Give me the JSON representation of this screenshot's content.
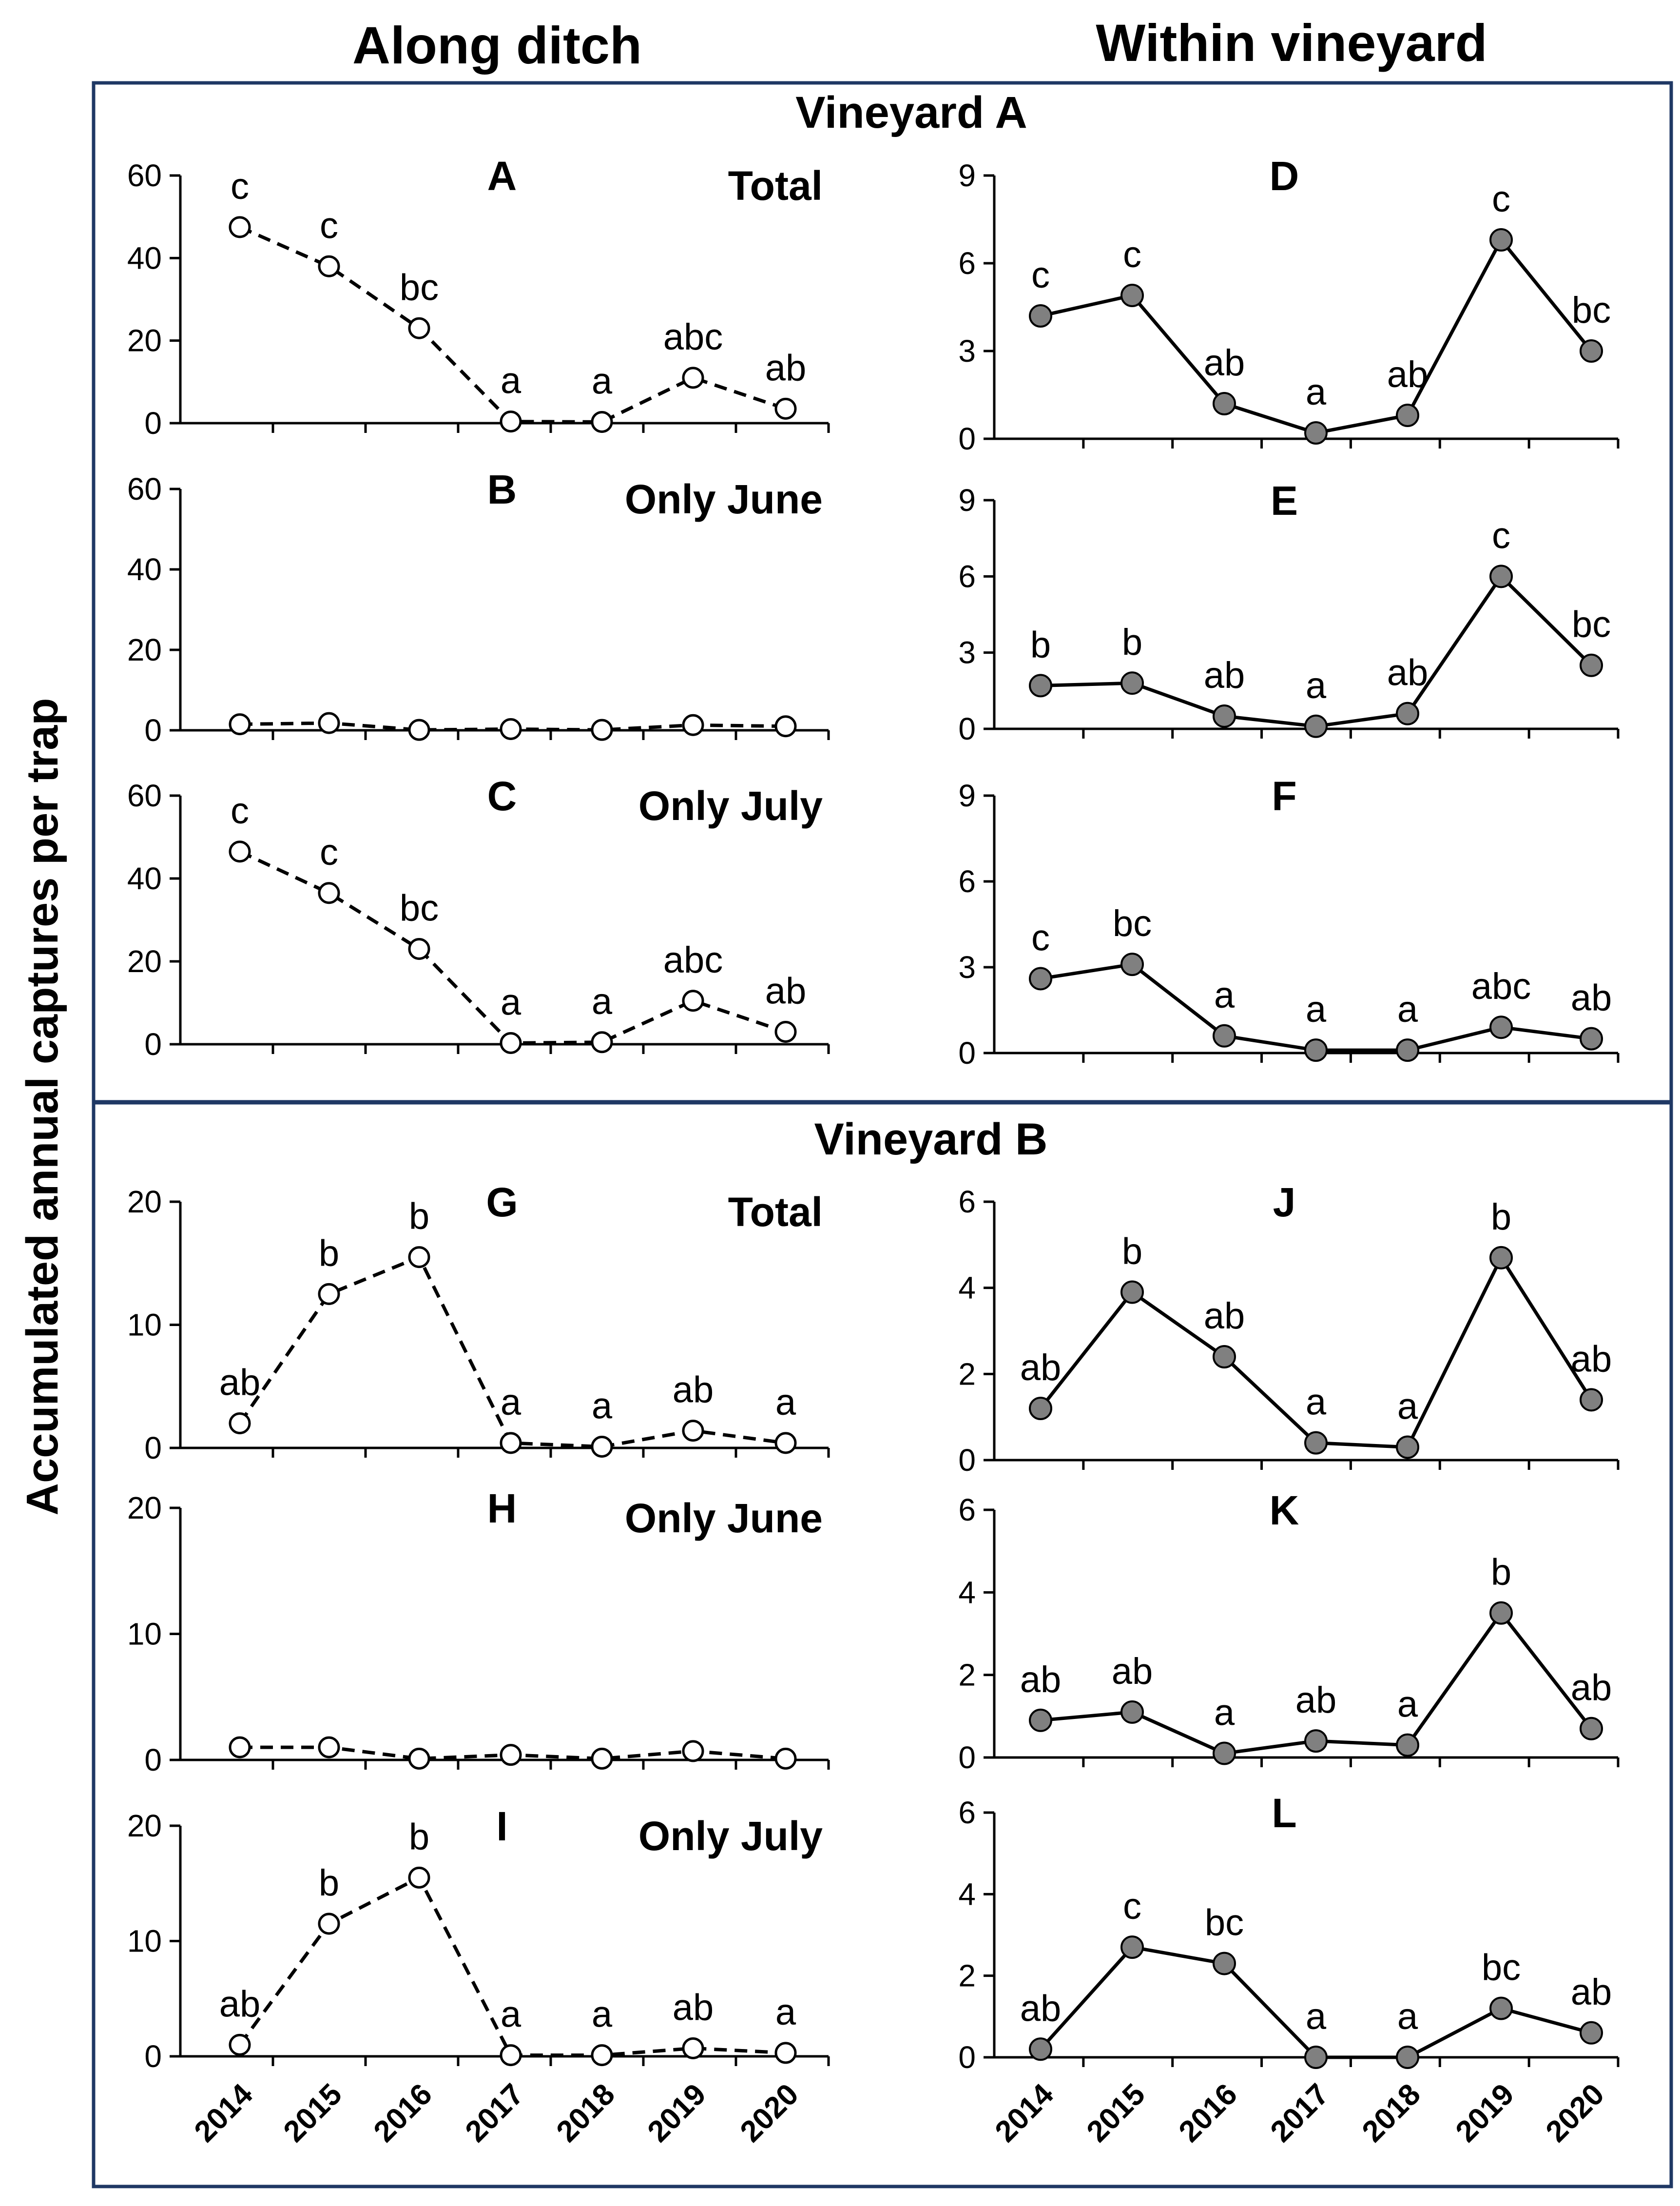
{
  "figure": {
    "col_left_title": "Along ditch",
    "col_right_title": "Within vineyard",
    "vineyard_a_title": "Vineyard A",
    "vineyard_b_title": "Vineyard B",
    "y_axis_title": "Accumulated annual captures per trap",
    "frame_color": "#1f3864",
    "line_color": "#000000",
    "filled_marker_color": "#808080",
    "hollow_marker_color": "#ffffff"
  },
  "chart_data": [
    {
      "panel": "A",
      "subtitle": "Total",
      "type": "line",
      "style": "dashed-hollow",
      "x": [
        "2014",
        "2015",
        "2016",
        "2017",
        "2018",
        "2019",
        "2020"
      ],
      "values": [
        47.5,
        38,
        23,
        0.4,
        0.3,
        11,
        3.5
      ],
      "letters": [
        "c",
        "c",
        "bc",
        "a",
        "a",
        "abc",
        "ab"
      ],
      "ylim": [
        0,
        60
      ],
      "yticks": [
        "0",
        "20",
        "40",
        "60"
      ]
    },
    {
      "panel": "B",
      "subtitle": "Only June",
      "type": "line",
      "style": "dashed-hollow",
      "x": [
        "2014",
        "2015",
        "2016",
        "2017",
        "2018",
        "2019",
        "2020"
      ],
      "values": [
        1.5,
        1.8,
        0.1,
        0.3,
        0.1,
        1.3,
        1.0
      ],
      "letters": [
        "",
        "",
        "",
        "",
        "",
        "",
        ""
      ],
      "ylim": [
        0,
        60
      ],
      "yticks": [
        "0",
        "20",
        "40",
        "60"
      ]
    },
    {
      "panel": "C",
      "subtitle": "Only July",
      "type": "line",
      "style": "dashed-hollow",
      "x": [
        "2014",
        "2015",
        "2016",
        "2017",
        "2018",
        "2019",
        "2020"
      ],
      "values": [
        46.5,
        36.5,
        23,
        0.3,
        0.5,
        10.5,
        3
      ],
      "letters": [
        "c",
        "c",
        "bc",
        "a",
        "a",
        "abc",
        "ab"
      ],
      "ylim": [
        0,
        60
      ],
      "yticks": [
        "0",
        "20",
        "40",
        "60"
      ]
    },
    {
      "panel": "D",
      "subtitle": "",
      "type": "line",
      "style": "solid-filled",
      "x": [
        "2014",
        "2015",
        "2016",
        "2017",
        "2018",
        "2019",
        "2020"
      ],
      "values": [
        4.2,
        4.9,
        1.2,
        0.2,
        0.8,
        6.8,
        3.0
      ],
      "letters": [
        "c",
        "c",
        "ab",
        "a",
        "ab",
        "c",
        "bc"
      ],
      "ylim": [
        0,
        9
      ],
      "yticks": [
        "0",
        "3",
        "6",
        "9"
      ]
    },
    {
      "panel": "E",
      "subtitle": "",
      "type": "line",
      "style": "solid-filled",
      "x": [
        "2014",
        "2015",
        "2016",
        "2017",
        "2018",
        "2019",
        "2020"
      ],
      "values": [
        1.7,
        1.8,
        0.5,
        0.1,
        0.6,
        6.0,
        2.5
      ],
      "letters": [
        "b",
        "b",
        "ab",
        "a",
        "ab",
        "c",
        "bc"
      ],
      "ylim": [
        0,
        9
      ],
      "yticks": [
        "0",
        "3",
        "6",
        "9"
      ]
    },
    {
      "panel": "F",
      "subtitle": "",
      "type": "line",
      "style": "solid-filled",
      "x": [
        "2014",
        "2015",
        "2016",
        "2017",
        "2018",
        "2019",
        "2020"
      ],
      "values": [
        2.6,
        3.1,
        0.6,
        0.1,
        0.1,
        0.9,
        0.5
      ],
      "letters": [
        "c",
        "bc",
        "a",
        "a",
        "a",
        "abc",
        "ab"
      ],
      "ylim": [
        0,
        9
      ],
      "yticks": [
        "0",
        "3",
        "6",
        "9"
      ]
    },
    {
      "panel": "G",
      "subtitle": "Total",
      "type": "line",
      "style": "dashed-hollow",
      "x": [
        "2014",
        "2015",
        "2016",
        "2017",
        "2018",
        "2019",
        "2020"
      ],
      "values": [
        2,
        12.5,
        15.5,
        0.4,
        0.1,
        1.4,
        0.4
      ],
      "letters": [
        "ab",
        "b",
        "b",
        "a",
        "a",
        "ab",
        "a"
      ],
      "ylim": [
        0,
        20
      ],
      "yticks": [
        "0",
        "10",
        "20"
      ]
    },
    {
      "panel": "H",
      "subtitle": "Only June",
      "type": "line",
      "style": "dashed-hollow",
      "x": [
        "2014",
        "2015",
        "2016",
        "2017",
        "2018",
        "2019",
        "2020"
      ],
      "values": [
        1.0,
        1.0,
        0.1,
        0.4,
        0.1,
        0.7,
        0.1
      ],
      "letters": [
        "",
        "",
        "",
        "",
        "",
        "",
        ""
      ],
      "ylim": [
        0,
        20
      ],
      "yticks": [
        "0",
        "10",
        "20"
      ]
    },
    {
      "panel": "I",
      "subtitle": "Only July",
      "type": "line",
      "style": "dashed-hollow",
      "x": [
        "2014",
        "2015",
        "2016",
        "2017",
        "2018",
        "2019",
        "2020"
      ],
      "values": [
        1,
        11.5,
        15.5,
        0.1,
        0.1,
        0.7,
        0.3
      ],
      "letters": [
        "ab",
        "b",
        "b",
        "a",
        "a",
        "ab",
        "a"
      ],
      "ylim": [
        0,
        20
      ],
      "yticks": [
        "0",
        "10",
        "20"
      ]
    },
    {
      "panel": "J",
      "subtitle": "",
      "type": "line",
      "style": "solid-filled",
      "x": [
        "2014",
        "2015",
        "2016",
        "2017",
        "2018",
        "2019",
        "2020"
      ],
      "values": [
        1.2,
        3.9,
        2.4,
        0.4,
        0.3,
        4.7,
        1.4
      ],
      "letters": [
        "ab",
        "b",
        "ab",
        "a",
        "a",
        "b",
        "ab"
      ],
      "ylim": [
        0,
        6
      ],
      "yticks": [
        "0",
        "2",
        "4",
        "6"
      ]
    },
    {
      "panel": "K",
      "subtitle": "",
      "type": "line",
      "style": "solid-filled",
      "x": [
        "2014",
        "2015",
        "2016",
        "2017",
        "2018",
        "2019",
        "2020"
      ],
      "values": [
        0.9,
        1.1,
        0.1,
        0.4,
        0.3,
        3.5,
        0.7
      ],
      "letters": [
        "ab",
        "ab",
        "a",
        "ab",
        "a",
        "b",
        "ab"
      ],
      "ylim": [
        0,
        6
      ],
      "yticks": [
        "0",
        "2",
        "4",
        "6"
      ]
    },
    {
      "panel": "L",
      "subtitle": "",
      "type": "line",
      "style": "solid-filled",
      "x": [
        "2014",
        "2015",
        "2016",
        "2017",
        "2018",
        "2019",
        "2020"
      ],
      "values": [
        0.2,
        2.7,
        2.3,
        0.0,
        0.0,
        1.2,
        0.6
      ],
      "letters": [
        "ab",
        "c",
        "bc",
        "a",
        "a",
        "bc",
        "ab"
      ],
      "ylim": [
        0,
        6
      ],
      "yticks": [
        "0",
        "2",
        "4",
        "6"
      ]
    }
  ]
}
